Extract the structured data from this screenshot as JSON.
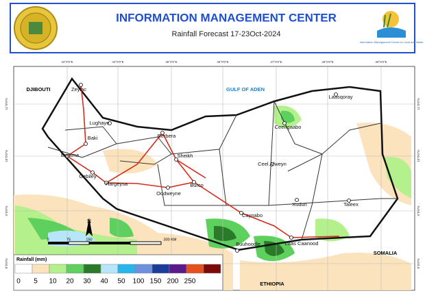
{
  "header": {
    "title": "INFORMATION MANAGEMENT CENTER",
    "subtitle": "Rainfall Forecast 17-23Oct-2024",
    "logo_text": "Information Management Center for Land and Water"
  },
  "map": {
    "longitudes": [
      "43°0'0\"E",
      "44°0'0\"E",
      "45°0'0\"E",
      "46°0'0\"E",
      "47°0'0\"E",
      "48°0'0\"E",
      "49°0'0\"E"
    ],
    "latitudes": [
      "11°0'0\"N",
      "10°0'0\"N",
      "9°0'0\"N",
      "8°0'0\"N"
    ],
    "regions": [
      "DJIBOUTI",
      "GULF OF ADEN",
      "SOMALIA",
      "ETHIOPIA"
    ],
    "cities": [
      "Zeylac",
      "Lughaye",
      "Baki",
      "Borama",
      "Gebiley",
      "Hargeysa",
      "Berbera",
      "Sheikh",
      "Burco",
      "Oodweyne",
      "Caynabo",
      "Buuhoodle",
      "Laas Caanood",
      "Xudun",
      "Taleex",
      "Ceel Afweyn",
      "Ceerigaabo",
      "Laasqoray"
    ],
    "north": "N",
    "scale": [
      "0",
      "75",
      "150",
      "300 KM"
    ]
  },
  "legend": {
    "title": "Rainfall (mm)",
    "colors": [
      "#ffffff",
      "#fbe3bd",
      "#b4f08c",
      "#5dd05d",
      "#2a7a2a",
      "#b7e6fb",
      "#27b5ee",
      "#6c90dc",
      "#1c3c9c",
      "#5a1a8c",
      "#e5501c",
      "#7d0a0a"
    ],
    "labels": [
      "0",
      "5",
      "10",
      "20",
      "30",
      "40",
      "50",
      "100",
      "150",
      "200",
      "250"
    ]
  }
}
